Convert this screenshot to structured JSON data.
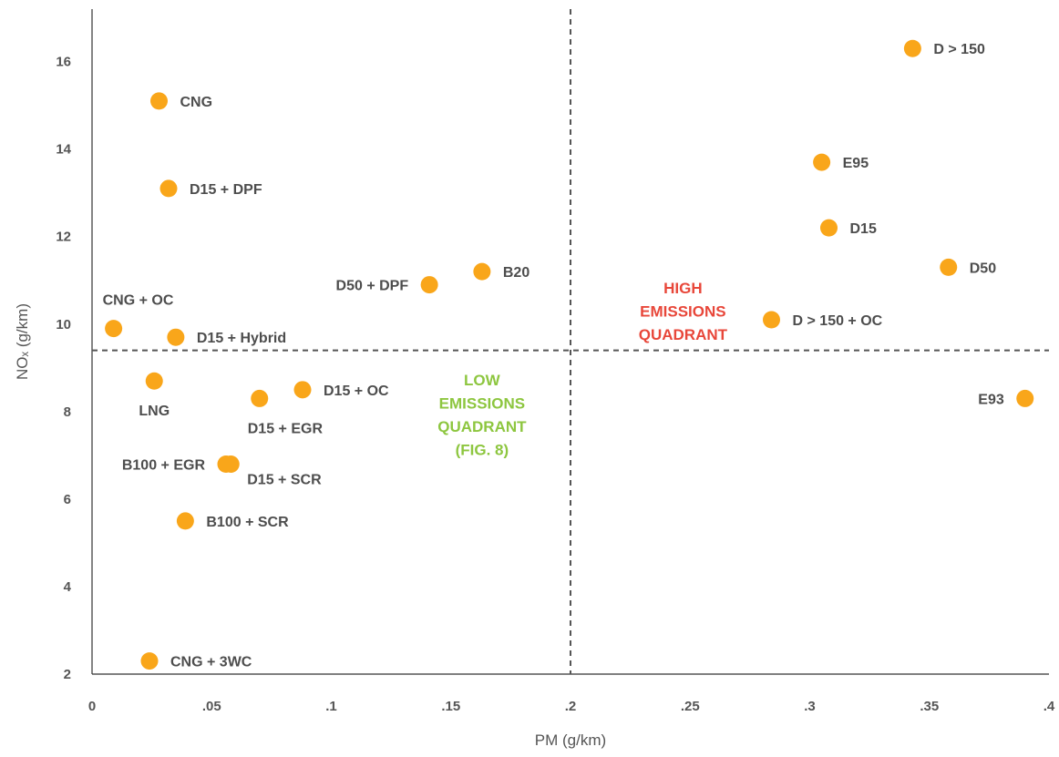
{
  "chart_data": {
    "type": "scatter",
    "xlabel": "PM (g/km)",
    "ylabel": "NOₓ (g/km)",
    "xlim": [
      0,
      0.4
    ],
    "ylim": [
      2,
      17.2
    ],
    "x_ticks": [
      0,
      0.05,
      0.1,
      0.15,
      0.2,
      0.25,
      0.3,
      0.35,
      0.4
    ],
    "x_tick_labels": [
      "0",
      ".05",
      ".1",
      ".15",
      ".2",
      ".25",
      ".3",
      ".35",
      ".4"
    ],
    "y_ticks": [
      2,
      4,
      6,
      8,
      10,
      12,
      14,
      16
    ],
    "y_tick_labels": [
      "2",
      "4",
      "6",
      "8",
      "10",
      "12",
      "14",
      "16"
    ],
    "grid": false,
    "marker_color": "#F9A61A",
    "points": [
      {
        "label": "D > 150",
        "x": 0.343,
        "y": 16.3
      },
      {
        "label": "CNG",
        "x": 0.028,
        "y": 15.1
      },
      {
        "label": "E95",
        "x": 0.305,
        "y": 13.7
      },
      {
        "label": "D15 + DPF",
        "x": 0.032,
        "y": 13.1
      },
      {
        "label": "D15",
        "x": 0.308,
        "y": 12.2
      },
      {
        "label": "D50",
        "x": 0.358,
        "y": 11.3
      },
      {
        "label": "B20",
        "x": 0.163,
        "y": 11.2
      },
      {
        "label": "D50 + DPF",
        "x": 0.141,
        "y": 10.9
      },
      {
        "label": "D > 150 + OC",
        "x": 0.284,
        "y": 10.1
      },
      {
        "label": "CNG + OC",
        "x": 0.009,
        "y": 9.9
      },
      {
        "label": "D15 + Hybrid",
        "x": 0.035,
        "y": 9.7
      },
      {
        "label": "LNG",
        "x": 0.026,
        "y": 8.7
      },
      {
        "label": "D15 + OC",
        "x": 0.088,
        "y": 8.5
      },
      {
        "label": "D15 + EGR",
        "x": 0.07,
        "y": 8.3
      },
      {
        "label": "E93",
        "x": 0.39,
        "y": 8.3
      },
      {
        "label": "B100 + EGR",
        "x": 0.056,
        "y": 6.8
      },
      {
        "label": "D15 + SCR",
        "x": 0.058,
        "y": 6.8
      },
      {
        "label": "B100 + SCR",
        "x": 0.039,
        "y": 5.5
      },
      {
        "label": "CNG + 3WC",
        "x": 0.024,
        "y": 2.3
      }
    ],
    "reference_lines": {
      "x": 0.2,
      "y": 9.4,
      "style": "dashed"
    },
    "annotations": [
      {
        "lines": [
          "HIGH",
          "EMISSIONS",
          "QUADRANT"
        ],
        "color": "#E8473A"
      },
      {
        "lines": [
          "LOW",
          "EMISSIONS",
          "QUADRANT",
          "(FIG. 8)"
        ],
        "color": "#8DC63F"
      }
    ]
  }
}
